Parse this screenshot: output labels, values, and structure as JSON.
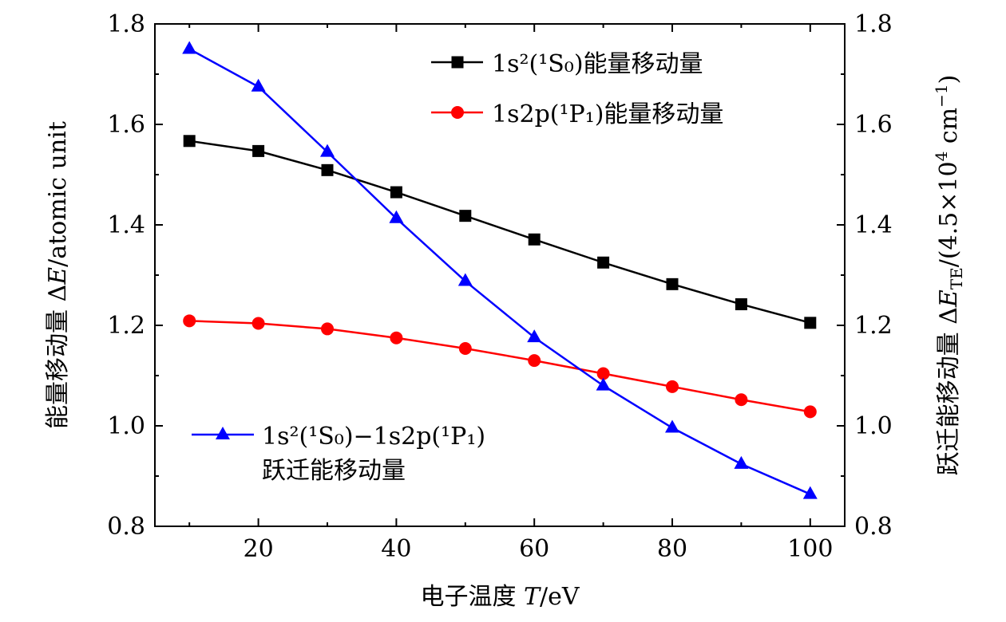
{
  "chart_data": {
    "type": "line",
    "x": [
      10,
      20,
      30,
      40,
      50,
      60,
      70,
      80,
      90,
      100
    ],
    "xlim": [
      5,
      105
    ],
    "ylim": [
      0.8,
      1.8
    ],
    "y2lim": [
      0.8,
      1.8
    ],
    "x_ticks": [
      "20",
      "40",
      "60",
      "80",
      "100"
    ],
    "y_ticks": [
      "0.8",
      "1.0",
      "1.2",
      "1.4",
      "1.6",
      "1.8"
    ],
    "y2_ticks": [
      "0.8",
      "1.0",
      "1.2",
      "1.4",
      "1.6",
      "1.8"
    ],
    "xlabel": "电子温度 T/eV",
    "ylabel": "能量移动量 ΔE/atomic unit",
    "y2label": "跃迁能移动量 ΔE_TE/(4.5×10^4 cm^−1)",
    "grid": false,
    "series": [
      {
        "name": "1s²(¹S₀)能量移动量",
        "color": "#000000",
        "marker": "square",
        "values": [
          1.567,
          1.547,
          1.509,
          1.465,
          1.418,
          1.371,
          1.325,
          1.282,
          1.242,
          1.205
        ]
      },
      {
        "name": "1s2p(¹P₁)能量移动量",
        "color": "#ff0000",
        "marker": "circle",
        "values": [
          1.209,
          1.204,
          1.193,
          1.175,
          1.154,
          1.13,
          1.104,
          1.078,
          1.052,
          1.028
        ]
      },
      {
        "name": "1s²(¹S₀)−1s2p(¹P₁)",
        "name2": "跃迁能移动量",
        "color": "#0000ff",
        "marker": "triangle",
        "values": [
          1.75,
          1.675,
          1.545,
          1.413,
          1.288,
          1.176,
          1.08,
          0.996,
          0.924,
          0.864
        ]
      }
    ]
  },
  "labels": {
    "xlabel_cn": "电子温度",
    "xlabel_var": "T",
    "xlabel_unit": "/eV",
    "ylabel_cn": "能量移动量",
    "ylabel_delta": "Δ",
    "ylabel_var": "E",
    "ylabel_unit": "/atomic unit",
    "y2label_cn": "跃迁能移动量",
    "y2label_delta": "Δ",
    "y2label_var": "E",
    "y2label_sub": "TE",
    "y2label_unit_open": "/(4.5×10",
    "y2label_exp": "4",
    "y2label_unit_mid": " cm",
    "y2label_exp2": "−1",
    "y2label_close": ")",
    "legend1": "1s²(¹S₀)能量移动量",
    "legend2": "1s2p(¹P₁)能量移动量",
    "legend3_line1": "1s²(¹S₀)−1s2p(¹P₁)",
    "legend3_line2": "跃迁能移动量"
  }
}
